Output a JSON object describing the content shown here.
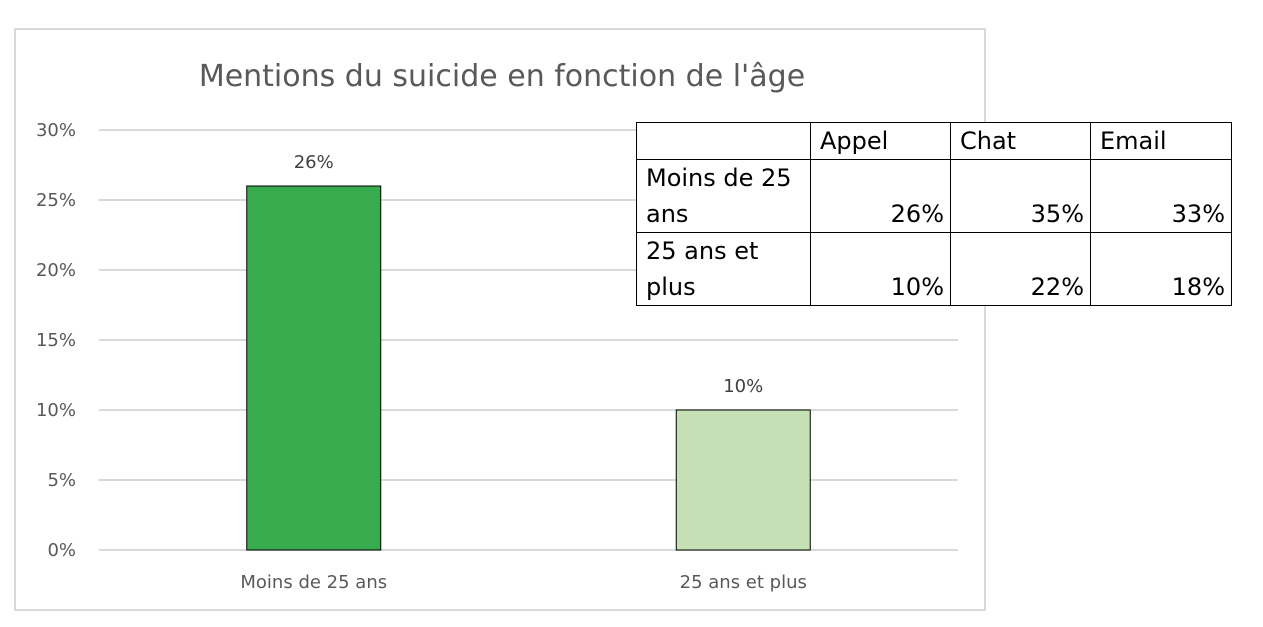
{
  "chart_data": {
    "type": "bar",
    "title": "Mentions du suicide en fonction de l'âge",
    "categories": [
      "Moins de 25 ans",
      "25 ans et plus"
    ],
    "values": [
      26,
      10
    ],
    "data_labels": [
      "26%",
      "10%"
    ],
    "bar_colors": [
      "#37ab4e",
      "#c5e0b4"
    ],
    "ylim": [
      0,
      30
    ],
    "yticks": [
      "0%",
      "5%",
      "10%",
      "15%",
      "20%",
      "25%",
      "30%"
    ],
    "grid": true,
    "legend": "none"
  },
  "table": {
    "headers": [
      "",
      "Appel",
      "Chat",
      "Email"
    ],
    "rows": [
      {
        "label": "Moins de 25 ans",
        "values": [
          "26%",
          "35%",
          "33%"
        ]
      },
      {
        "label": "25 ans et plus",
        "values": [
          "10%",
          "22%",
          "18%"
        ]
      }
    ]
  }
}
